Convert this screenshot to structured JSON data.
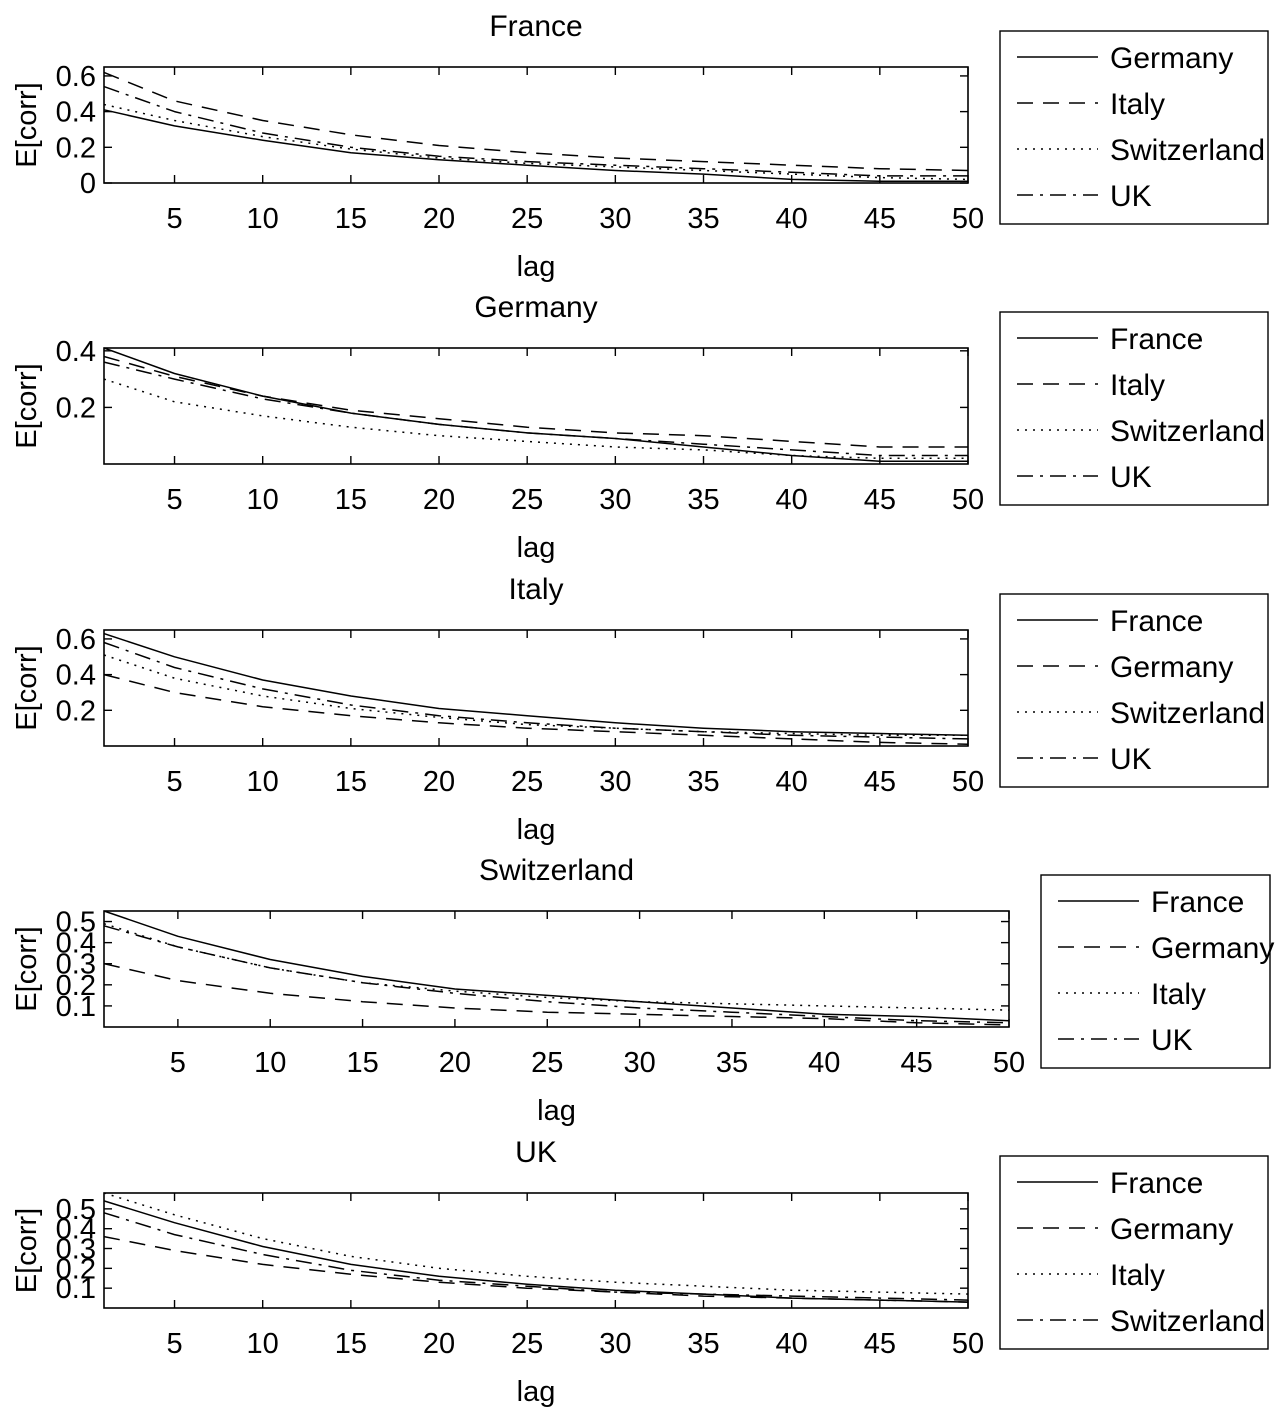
{
  "chart_data": [
    {
      "type": "line",
      "title": "France",
      "xlabel": "lag",
      "ylabel": "E[corr]",
      "xlim": [
        1,
        50
      ],
      "ylim": [
        0,
        0.65
      ],
      "xticks": [
        5,
        10,
        15,
        20,
        25,
        30,
        35,
        40,
        45,
        50
      ],
      "yticks": [
        0,
        0.2,
        0.4,
        0.6
      ],
      "ytick_labels": [
        "0",
        "0.2",
        "0.4",
        "0.6"
      ],
      "legend": "outside-right",
      "x": [
        1,
        5,
        10,
        15,
        20,
        25,
        30,
        35,
        40,
        45,
        50
      ],
      "series": [
        {
          "name": "Germany",
          "style": "solid",
          "values": [
            0.41,
            0.32,
            0.24,
            0.17,
            0.13,
            0.1,
            0.07,
            0.05,
            0.02,
            0.01,
            0.01
          ]
        },
        {
          "name": "Italy",
          "style": "dashed",
          "values": [
            0.62,
            0.46,
            0.35,
            0.27,
            0.21,
            0.17,
            0.14,
            0.12,
            0.1,
            0.08,
            0.07
          ]
        },
        {
          "name": "Switzerland",
          "style": "dotted",
          "values": [
            0.44,
            0.35,
            0.26,
            0.19,
            0.14,
            0.11,
            0.09,
            0.07,
            0.05,
            0.03,
            0.02
          ]
        },
        {
          "name": "UK",
          "style": "dashdot",
          "values": [
            0.54,
            0.4,
            0.28,
            0.2,
            0.15,
            0.12,
            0.1,
            0.08,
            0.06,
            0.04,
            0.04
          ]
        }
      ]
    },
    {
      "type": "line",
      "title": "Germany",
      "xlabel": "lag",
      "ylabel": "E[corr]",
      "xlim": [
        1,
        50
      ],
      "ylim": [
        0,
        0.41
      ],
      "xticks": [
        5,
        10,
        15,
        20,
        25,
        30,
        35,
        40,
        45,
        50
      ],
      "yticks": [
        0.2,
        0.4
      ],
      "ytick_labels": [
        "0.2",
        "0.4"
      ],
      "legend": "outside-right",
      "x": [
        1,
        5,
        10,
        15,
        20,
        25,
        30,
        35,
        40,
        45,
        50
      ],
      "series": [
        {
          "name": "France",
          "style": "solid",
          "values": [
            0.41,
            0.32,
            0.24,
            0.18,
            0.14,
            0.11,
            0.09,
            0.06,
            0.03,
            0.01,
            0.01
          ]
        },
        {
          "name": "Italy",
          "style": "dashed",
          "values": [
            0.38,
            0.31,
            0.24,
            0.19,
            0.16,
            0.13,
            0.11,
            0.1,
            0.08,
            0.06,
            0.06
          ]
        },
        {
          "name": "Switzerland",
          "style": "dotted",
          "values": [
            0.3,
            0.22,
            0.17,
            0.13,
            0.1,
            0.08,
            0.06,
            0.05,
            0.03,
            0.02,
            0.02
          ]
        },
        {
          "name": "UK",
          "style": "dashdot",
          "values": [
            0.36,
            0.3,
            0.23,
            0.18,
            0.14,
            0.11,
            0.09,
            0.07,
            0.05,
            0.03,
            0.03
          ]
        }
      ]
    },
    {
      "type": "line",
      "title": "Italy",
      "xlabel": "lag",
      "ylabel": "E[corr]",
      "xlim": [
        1,
        50
      ],
      "ylim": [
        0,
        0.65
      ],
      "xticks": [
        5,
        10,
        15,
        20,
        25,
        30,
        35,
        40,
        45,
        50
      ],
      "yticks": [
        0.2,
        0.4,
        0.6
      ],
      "ytick_labels": [
        "0.2",
        "0.4",
        "0.6"
      ],
      "legend": "outside-right",
      "x": [
        1,
        5,
        10,
        15,
        20,
        25,
        30,
        35,
        40,
        45,
        50
      ],
      "series": [
        {
          "name": "France",
          "style": "solid",
          "values": [
            0.63,
            0.5,
            0.37,
            0.28,
            0.21,
            0.17,
            0.13,
            0.1,
            0.08,
            0.07,
            0.06
          ]
        },
        {
          "name": "Germany",
          "style": "dashed",
          "values": [
            0.4,
            0.3,
            0.22,
            0.17,
            0.13,
            0.1,
            0.08,
            0.06,
            0.04,
            0.02,
            0.01
          ]
        },
        {
          "name": "Switzerland",
          "style": "dotted",
          "values": [
            0.51,
            0.38,
            0.28,
            0.21,
            0.16,
            0.12,
            0.1,
            0.08,
            0.07,
            0.06,
            0.06
          ]
        },
        {
          "name": "UK",
          "style": "dashdot",
          "values": [
            0.58,
            0.44,
            0.32,
            0.23,
            0.17,
            0.13,
            0.1,
            0.08,
            0.06,
            0.05,
            0.04
          ]
        }
      ]
    },
    {
      "type": "line",
      "title": "Switzerland",
      "xlabel": "lag",
      "ylabel": "E[corr]",
      "xlim": [
        1,
        50
      ],
      "ylim": [
        0,
        0.55
      ],
      "xticks": [
        5,
        10,
        15,
        20,
        25,
        30,
        35,
        40,
        45,
        50
      ],
      "yticks": [
        0.1,
        0.2,
        0.3,
        0.4,
        0.5
      ],
      "ytick_labels": [
        "0.1",
        "0.2",
        "0.3",
        "0.4",
        "0.5"
      ],
      "legend": "outside-right",
      "x": [
        1,
        5,
        10,
        15,
        20,
        25,
        30,
        35,
        40,
        45,
        50
      ],
      "series": [
        {
          "name": "France",
          "style": "solid",
          "values": [
            0.55,
            0.43,
            0.32,
            0.24,
            0.18,
            0.15,
            0.12,
            0.09,
            0.06,
            0.05,
            0.03
          ]
        },
        {
          "name": "Germany",
          "style": "dashed",
          "values": [
            0.3,
            0.22,
            0.16,
            0.12,
            0.09,
            0.07,
            0.06,
            0.05,
            0.04,
            0.02,
            0.01
          ]
        },
        {
          "name": "Italy",
          "style": "dotted",
          "values": [
            0.49,
            0.38,
            0.28,
            0.21,
            0.17,
            0.14,
            0.12,
            0.11,
            0.1,
            0.09,
            0.08
          ]
        },
        {
          "name": "UK",
          "style": "dashdot",
          "values": [
            0.48,
            0.38,
            0.28,
            0.21,
            0.16,
            0.12,
            0.09,
            0.07,
            0.05,
            0.03,
            0.02
          ]
        }
      ]
    },
    {
      "type": "line",
      "title": "UK",
      "xlabel": "lag",
      "ylabel": "E[corr]",
      "xlim": [
        1,
        50
      ],
      "ylim": [
        0,
        0.58
      ],
      "xticks": [
        5,
        10,
        15,
        20,
        25,
        30,
        35,
        40,
        45,
        50
      ],
      "yticks": [
        0.1,
        0.2,
        0.3,
        0.4,
        0.5
      ],
      "ytick_labels": [
        "0.1",
        "0.2",
        "0.3",
        "0.4",
        "0.5"
      ],
      "legend": "outside-right",
      "x": [
        1,
        5,
        10,
        15,
        20,
        25,
        30,
        35,
        40,
        45,
        50
      ],
      "series": [
        {
          "name": "France",
          "style": "solid",
          "values": [
            0.54,
            0.43,
            0.31,
            0.22,
            0.16,
            0.12,
            0.09,
            0.07,
            0.05,
            0.04,
            0.03
          ]
        },
        {
          "name": "Germany",
          "style": "dashed",
          "values": [
            0.36,
            0.29,
            0.22,
            0.17,
            0.13,
            0.1,
            0.08,
            0.06,
            0.05,
            0.04,
            0.03
          ]
        },
        {
          "name": "Italy",
          "style": "dotted",
          "values": [
            0.58,
            0.47,
            0.35,
            0.26,
            0.2,
            0.16,
            0.13,
            0.11,
            0.09,
            0.08,
            0.07
          ]
        },
        {
          "name": "Switzerland",
          "style": "dashdot",
          "values": [
            0.48,
            0.37,
            0.27,
            0.19,
            0.14,
            0.11,
            0.08,
            0.07,
            0.06,
            0.05,
            0.04
          ]
        }
      ]
    }
  ]
}
